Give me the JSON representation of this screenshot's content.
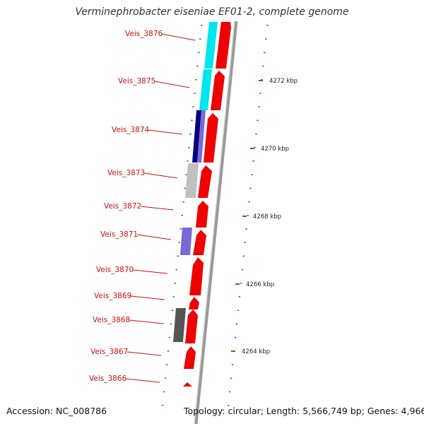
{
  "title": "Verminephrobacter eiseniae EF01-2, complete genome",
  "accession": "Accession: NC_008786",
  "topology": "Topology: circular; Length: 5,566,749 bp; Genes: 4,966",
  "colors": {
    "gene_label": "#cc1111",
    "cds_red": "#ee0000",
    "cog_cyan": "#00e5ee",
    "cog_navy": "#000080",
    "cog_slate": "#7a68d6",
    "cog_lightgray": "#c0c0c0",
    "cog_darkgray": "#555555",
    "backbone": "#999999",
    "tick": "#2a8a2a"
  },
  "genes": [
    {
      "label": "Veis_3876"
    },
    {
      "label": "Veis_3875"
    },
    {
      "label": "Veis_3874"
    },
    {
      "label": "Veis_3873"
    },
    {
      "label": "Veis_3872"
    },
    {
      "label": "Veis_3871"
    },
    {
      "label": "Veis_3870"
    },
    {
      "label": "Veis_3869"
    },
    {
      "label": "Veis_3868"
    },
    {
      "label": "Veis_3867"
    },
    {
      "label": "Veis_3866"
    }
  ],
  "kbp_labels": [
    "4272 kbp",
    "4270 kbp",
    "4268 kbp",
    "4266 kbp",
    "4264 kbp"
  ]
}
